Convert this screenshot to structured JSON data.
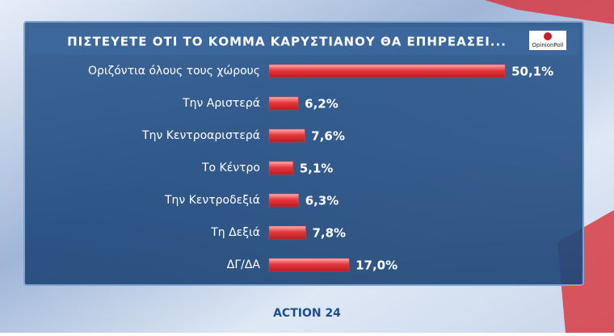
{
  "chart_data": {
    "type": "bar",
    "orientation": "horizontal",
    "title": "ΠΙΣΤΕΥΕΤΕ ΟΤΙ ΤΟ ΚΟΜΜΑ ΚΑΡΥΣΤΙΑΝΟΥ ΘΑ ΕΠΗΡΕΑΣΕΙ...",
    "categories": [
      "Οριζόντια όλους τους χώρους",
      "Την Αριστερά",
      "Την Κεντροαριστερά",
      "Το Κέντρο",
      "Την Κεντροδεξιά",
      "Τη Δεξιά",
      "ΔΓ/ΔΑ"
    ],
    "values": [
      50.1,
      6.2,
      7.6,
      5.1,
      6.3,
      7.8,
      17.0
    ],
    "value_labels": [
      "50,1%",
      "6,2%",
      "7,6%",
      "5,1%",
      "6,3%",
      "7,8%",
      "17,0%"
    ],
    "color": "#e8373c"
  },
  "logo": "OpinionPoll",
  "channel": "ACTION 24"
}
